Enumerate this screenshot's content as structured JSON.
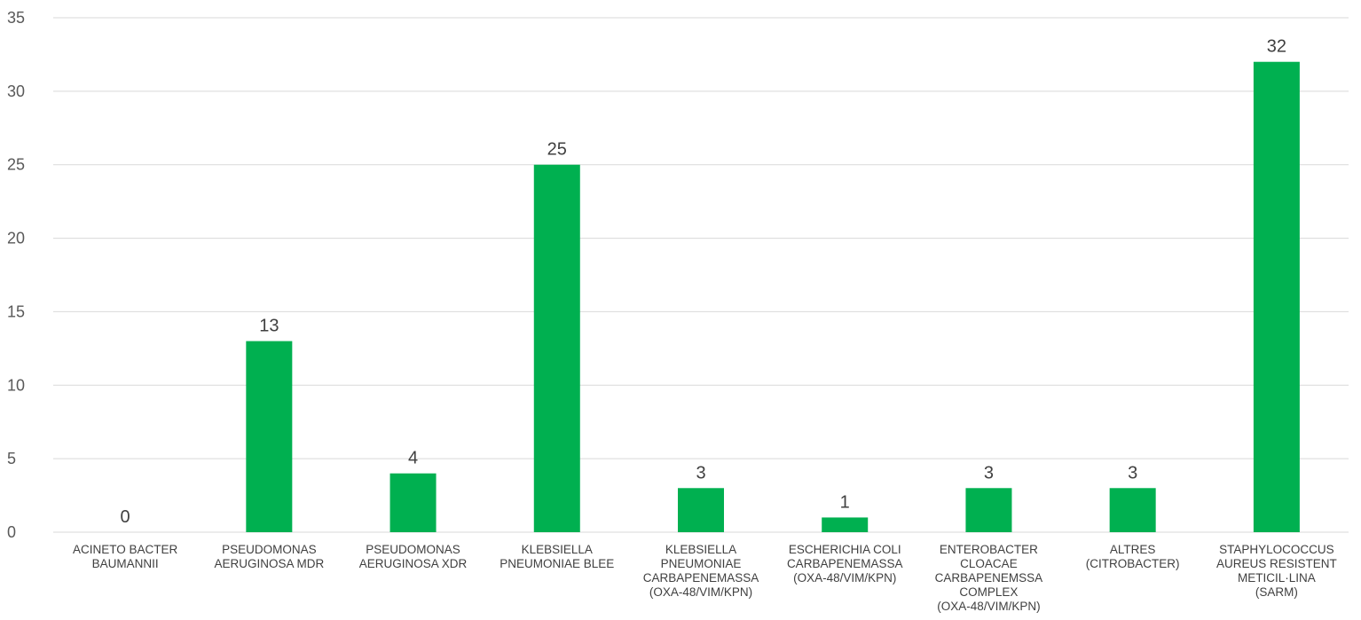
{
  "chart_data": {
    "type": "bar",
    "title": "",
    "xlabel": "",
    "ylabel": "",
    "ylim": [
      0,
      35
    ],
    "yticks": [
      0,
      5,
      10,
      15,
      20,
      25,
      30,
      35
    ],
    "grid": true,
    "legend": "none",
    "bar_color": "#00b050",
    "categories": [
      [
        "ACINETO BACTER",
        "BAUMANNII"
      ],
      [
        "PSEUDOMONAS",
        "AERUGINOSA MDR"
      ],
      [
        "PSEUDOMONAS",
        "AERUGINOSA XDR"
      ],
      [
        "KLEBSIELLA",
        "PNEUMONIAE BLEE"
      ],
      [
        "KLEBSIELLA",
        "PNEUMONIAE",
        "CARBAPENEMASSA",
        "(OXA-48/VIM/KPN)"
      ],
      [
        "ESCHERICHIA COLI",
        "CARBAPENEMASSA",
        "(OXA-48/VIM/KPN)"
      ],
      [
        "ENTEROBACTER",
        "CLOACAE",
        "CARBAPENEMSSA",
        "COMPLEX",
        "(OXA-48/VIM/KPN)"
      ],
      [
        "ALTRES",
        "(CITROBACTER)"
      ],
      [
        "STAPHYLOCOCCUS",
        "AUREUS RESISTENT",
        "METICIL·LINA",
        "(SARM)"
      ]
    ],
    "values": [
      0,
      13,
      4,
      25,
      3,
      1,
      3,
      3,
      32
    ]
  }
}
